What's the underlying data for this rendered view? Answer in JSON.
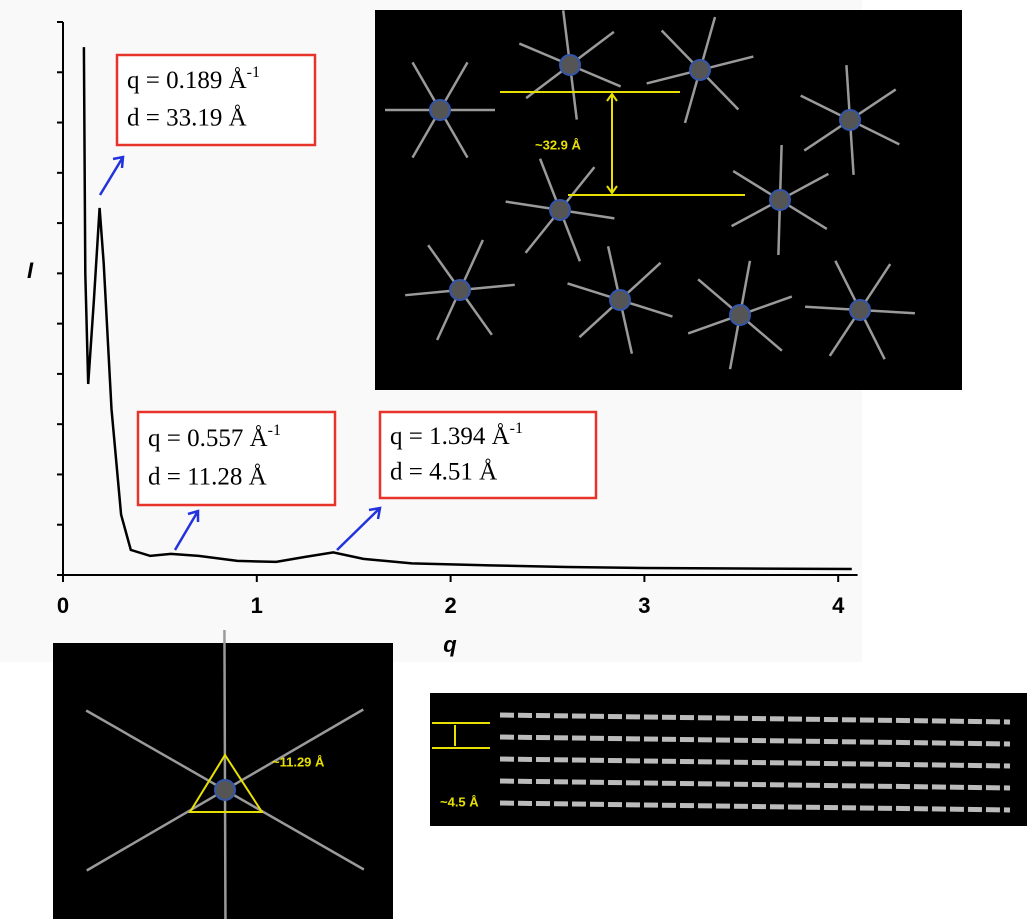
{
  "chart_data": {
    "type": "line",
    "x_label": "q",
    "y_label": "I",
    "x": [
      0.108,
      0.115,
      0.13,
      0.16,
      0.189,
      0.21,
      0.25,
      0.3,
      0.35,
      0.45,
      0.557,
      0.7,
      0.9,
      1.1,
      1.25,
      1.394,
      1.55,
      1.8,
      2.2,
      2.6,
      3.0,
      3.5,
      4.07
    ],
    "values": [
      105,
      60,
      38,
      55,
      73,
      62,
      33,
      12,
      5,
      3.8,
      4.2,
      3.8,
      2.8,
      2.6,
      3.6,
      4.5,
      3.2,
      2.3,
      1.9,
      1.6,
      1.4,
      1.3,
      1.2
    ],
    "color": "#000000",
    "xlim": [
      0,
      4.1
    ],
    "xticks": [
      0,
      1,
      2,
      3,
      4
    ],
    "ylim": [
      0,
      110
    ],
    "yticks": [
      0,
      10,
      20,
      30,
      40,
      50,
      60,
      70,
      80,
      90,
      100,
      110
    ],
    "annotations": [
      {
        "line1": "q = 0.189 Å",
        "sup": "-1",
        "line2": "d = 33.19 Å"
      },
      {
        "line1": "q = 0.557 Å",
        "sup": "-1",
        "line2": "d = 11.28 Å"
      },
      {
        "line1": "q = 1.394 Å",
        "sup": "-1",
        "line2": "d = 4.51 Å"
      }
    ]
  },
  "insets": [
    {
      "label": "~32.9 Å"
    },
    {
      "label": "~11.29 Å"
    },
    {
      "label": "~4.5 Å"
    }
  ]
}
